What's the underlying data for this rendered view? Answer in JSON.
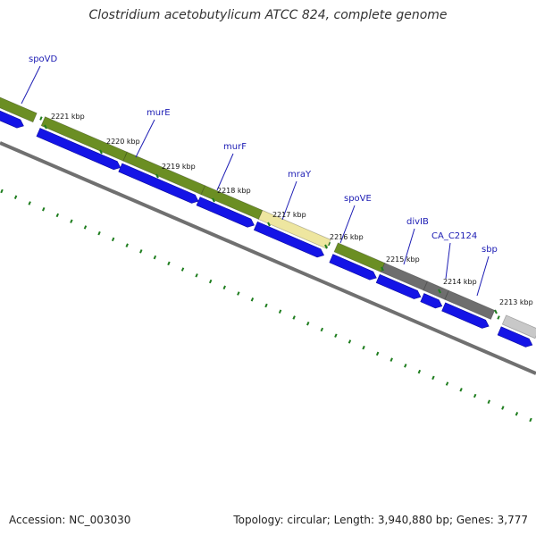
{
  "title": "Clostridium acetobutylicum ATCC 824, complete genome",
  "footer": {
    "accession": "Accession: NC_003030",
    "summary": "Topology: circular; Length: 3,940,880 bp; Genes: 3,777"
  },
  "colors": {
    "gene_green": "#6b8e23",
    "gene_gray": "#6e6e6e",
    "gene_pale": "#eee6a0",
    "cds_blue": "#1414e6",
    "backbone": "#808080",
    "tick": "#1e7d1e",
    "label": "#1c1cb4"
  },
  "kbp_labels": [
    "2221 kbp",
    "2220 kbp",
    "2219 kbp",
    "2218 kbp",
    "2217 kbp",
    "2216 kbp",
    "2215 kbp",
    "2214 kbp",
    "2213 kbp"
  ],
  "gene_labels": [
    "spoVD",
    "murE",
    "murF",
    "mraY",
    "spoVE",
    "divIB",
    "CA_C2124",
    "sbp"
  ]
}
